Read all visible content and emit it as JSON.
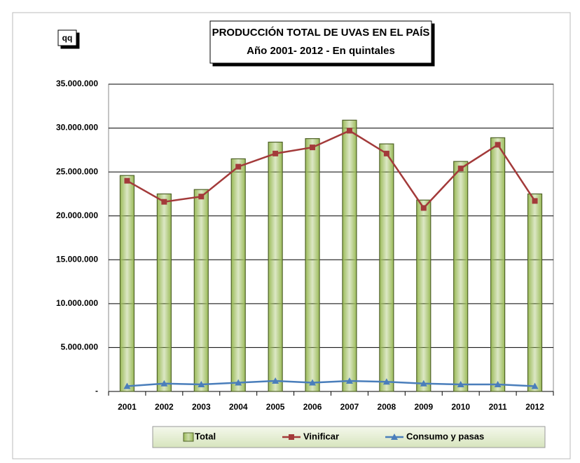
{
  "chart_data": {
    "type": "bar",
    "unit_label": "qq",
    "title": "PRODUCCIÓN TOTAL DE UVAS EN EL PAÍS",
    "subtitle": "Año 2001- 2012 -  En quintales",
    "categories": [
      "2001",
      "2002",
      "2003",
      "2004",
      "2005",
      "2006",
      "2007",
      "2008",
      "2009",
      "2010",
      "2011",
      "2012"
    ],
    "series": [
      {
        "name": "Total",
        "type": "bar",
        "color": "#9bbb59",
        "values": [
          24600000,
          22500000,
          23000000,
          26500000,
          28400000,
          28800000,
          30900000,
          28200000,
          21800000,
          26200000,
          28900000,
          22500000
        ]
      },
      {
        "name": "Vinificar",
        "type": "line",
        "marker": "square",
        "color": "#a33a3a",
        "values": [
          24000000,
          21600000,
          22200000,
          25600000,
          27100000,
          27800000,
          29700000,
          27100000,
          20900000,
          25400000,
          28100000,
          21700000
        ]
      },
      {
        "name": "Consumo y pasas",
        "type": "line",
        "marker": "triangle",
        "color": "#4a7ebb",
        "values": [
          600000,
          900000,
          800000,
          1000000,
          1200000,
          1000000,
          1200000,
          1100000,
          900000,
          800000,
          800000,
          600000
        ]
      }
    ],
    "ylim": [
      0,
      35000000
    ],
    "yticks": [
      {
        "value": 0,
        "label": "-"
      },
      {
        "value": 5000000,
        "label": "5.000.000"
      },
      {
        "value": 10000000,
        "label": "10.000.000"
      },
      {
        "value": 15000000,
        "label": "15.000.000"
      },
      {
        "value": 20000000,
        "label": "20.000.000"
      },
      {
        "value": 25000000,
        "label": "25.000.000"
      },
      {
        "value": 30000000,
        "label": "30.000.000"
      },
      {
        "value": 35000000,
        "label": "35.000.000"
      }
    ],
    "grid": true,
    "legend": "bottom"
  }
}
